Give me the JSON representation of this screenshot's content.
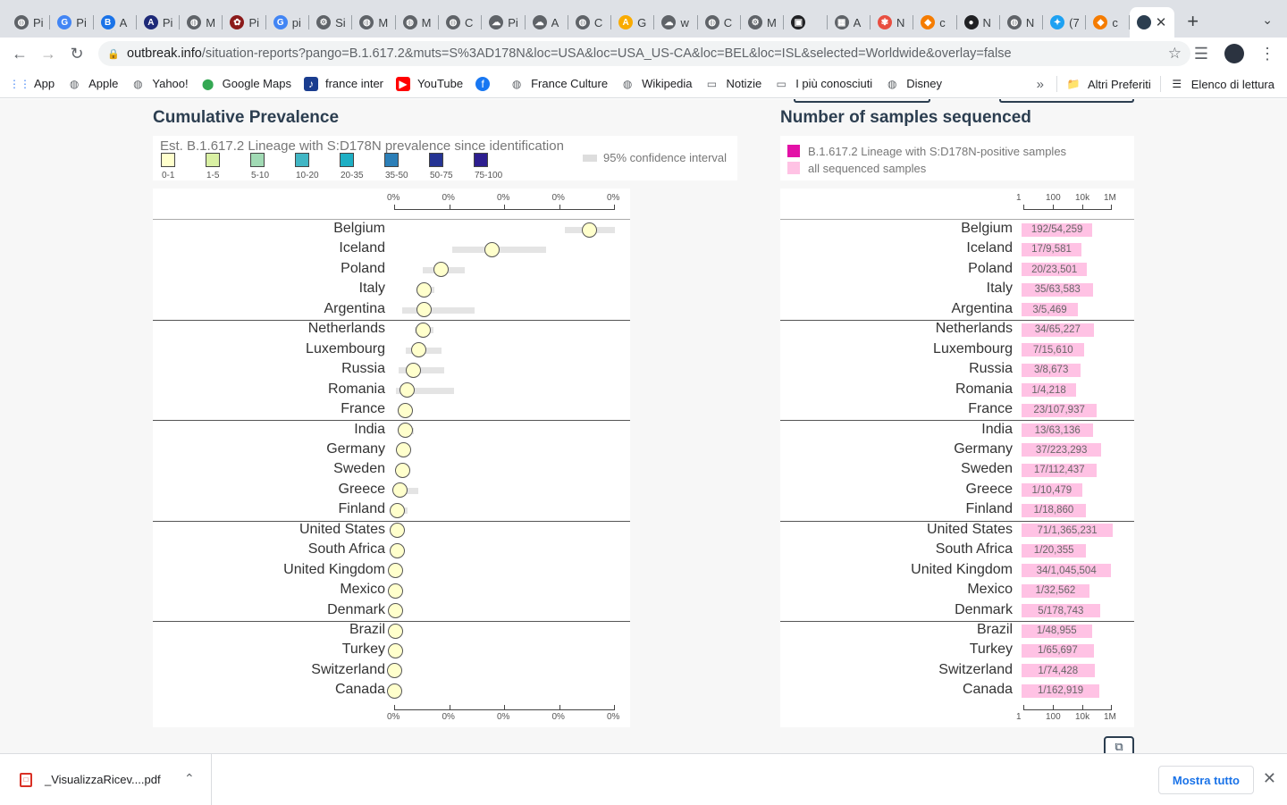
{
  "browser": {
    "tabs": [
      {
        "label": "Pi",
        "icon": "globe-icon"
      },
      {
        "label": "Pi",
        "icon": "google-icon"
      },
      {
        "label": "A",
        "icon": "b-icon"
      },
      {
        "label": "Pi",
        "icon": "a-icon"
      },
      {
        "label": "M",
        "icon": "globe-icon"
      },
      {
        "label": "Pi",
        "icon": "emblem-icon"
      },
      {
        "label": "pi",
        "icon": "google-icon"
      },
      {
        "label": "Si",
        "icon": "gear-icon"
      },
      {
        "label": "M",
        "icon": "globe-icon"
      },
      {
        "label": "M",
        "icon": "globe-icon"
      },
      {
        "label": "C",
        "icon": "globe-icon"
      },
      {
        "label": "Pi",
        "icon": "cloud-icon"
      },
      {
        "label": "A",
        "icon": "cloud-icon"
      },
      {
        "label": "C",
        "icon": "globe-icon"
      },
      {
        "label": "G",
        "icon": "a-yellow-icon"
      },
      {
        "label": "w",
        "icon": "cloud-icon"
      },
      {
        "label": "C",
        "icon": "globe-icon"
      },
      {
        "label": "M",
        "icon": "gear-icon"
      },
      {
        "label": "",
        "icon": "tv-icon"
      },
      {
        "label": "A",
        "icon": "map-icon"
      },
      {
        "label": "N",
        "icon": "flower-icon"
      },
      {
        "label": "c",
        "icon": "diamond-icon"
      },
      {
        "label": "N",
        "icon": "github-icon"
      },
      {
        "label": "N",
        "icon": "globe-icon"
      },
      {
        "label": "(7",
        "icon": "twitter-icon"
      },
      {
        "label": "c",
        "icon": "diamond-icon"
      }
    ],
    "active_tab": {
      "label": "",
      "icon": "outbreak-icon"
    },
    "url_host": "outbreak.info",
    "url_path": "/situation-reports?pango=B.1.617.2&muts=S%3AD178N&loc=USA&loc=USA_US-CA&loc=BEL&loc=ISL&selected=Worldwide&overlay=false",
    "bookmarks": [
      {
        "label": "App",
        "icon": "apps-grid-icon"
      },
      {
        "label": "Apple",
        "icon": "globe-icon"
      },
      {
        "label": "Yahoo!",
        "icon": "globe-icon"
      },
      {
        "label": "Google Maps",
        "icon": "map-pin-icon"
      },
      {
        "label": "france inter",
        "icon": "radio-icon"
      },
      {
        "label": "YouTube",
        "icon": "youtube-icon"
      },
      {
        "label": "",
        "icon": "facebook-icon"
      },
      {
        "label": "France Culture",
        "icon": "globe-icon"
      },
      {
        "label": "Wikipedia",
        "icon": "globe-icon"
      },
      {
        "label": "Notizie",
        "icon": "folder-icon"
      },
      {
        "label": "I più conosciuti",
        "icon": "folder-icon"
      },
      {
        "label": "Disney",
        "icon": "globe-icon"
      }
    ],
    "bookmarks_overflow": "»",
    "other_bookmarks": "Altri Preferiti",
    "reading_list": "Elenco di lettura"
  },
  "prevalence": {
    "title": "Cumulative Prevalence",
    "legend_title": "Est. B.1.617.2 Lineage with S:D178N prevalence since identification",
    "ci_label": "95% confidence interval",
    "swatches": [
      {
        "label": "0-1",
        "color": "#ffffcc"
      },
      {
        "label": "1-5",
        "color": "#d9f0a3"
      },
      {
        "label": "5-10",
        "color": "#a1dab4"
      },
      {
        "label": "10-20",
        "color": "#41b6c4"
      },
      {
        "label": "20-35",
        "color": "#1dafc4"
      },
      {
        "label": "35-50",
        "color": "#2c7fb8"
      },
      {
        "label": "50-75",
        "color": "#253494"
      },
      {
        "label": "75-100",
        "color": "#2d1e8f"
      }
    ],
    "axis_ticks": [
      "0%",
      "0%",
      "0%",
      "0%",
      "0%"
    ]
  },
  "samples": {
    "title": "Number of samples sequenced",
    "legend_positive": "B.1.617.2 Lineage with S:D178N-positive samples",
    "legend_all": "all sequenced samples",
    "positive_color": "#e311a7",
    "all_color": "#ffc2e4",
    "axis_ticks": [
      "1",
      "100",
      "10k",
      "1M"
    ]
  },
  "countries": [
    {
      "name": "Belgium",
      "est": 0.00354,
      "lo": 0.0031,
      "hi": 0.004,
      "samples": "192/54,259",
      "total": 54259
    },
    {
      "name": "Iceland",
      "est": 0.00178,
      "lo": 0.00105,
      "hi": 0.00275,
      "samples": "17/9,581",
      "total": 9581
    },
    {
      "name": "Poland",
      "est": 0.00085,
      "lo": 0.00052,
      "hi": 0.00128,
      "samples": "20/23,501",
      "total": 23501
    },
    {
      "name": "Italy",
      "est": 0.00055,
      "lo": 0.0004,
      "hi": 0.00073,
      "samples": "35/63,583",
      "total": 63583
    },
    {
      "name": "Argentina",
      "est": 0.00055,
      "lo": 0.00015,
      "hi": 0.00145,
      "samples": "3/5,469",
      "total": 5469
    },
    {
      "name": "Netherlands",
      "est": 0.00052,
      "lo": 0.00037,
      "hi": 0.00071,
      "samples": "34/65,227",
      "total": 65227
    },
    {
      "name": "Luxembourg",
      "est": 0.00045,
      "lo": 0.00021,
      "hi": 0.00086,
      "samples": "7/15,610",
      "total": 15610
    },
    {
      "name": "Russia",
      "est": 0.00035,
      "lo": 8e-05,
      "hi": 0.0009,
      "samples": "3/8,673",
      "total": 8673
    },
    {
      "name": "Romania",
      "est": 0.00024,
      "lo": 3e-05,
      "hi": 0.00109,
      "samples": "1/4,218",
      "total": 4218
    },
    {
      "name": "France",
      "est": 0.00021,
      "lo": 0.00014,
      "hi": 0.00032,
      "samples": "23/107,937",
      "total": 107937
    },
    {
      "name": "India",
      "est": 0.00021,
      "lo": 0.00011,
      "hi": 0.00035,
      "samples": "13/63,136",
      "total": 63136
    },
    {
      "name": "Germany",
      "est": 0.00017,
      "lo": 0.00012,
      "hi": 0.00023,
      "samples": "37/223,293",
      "total": 223293
    },
    {
      "name": "Sweden",
      "est": 0.00015,
      "lo": 9e-05,
      "hi": 0.00024,
      "samples": "17/112,437",
      "total": 112437
    },
    {
      "name": "Greece",
      "est": 0.0001,
      "lo": 1e-05,
      "hi": 0.00044,
      "samples": "1/10,479",
      "total": 10479
    },
    {
      "name": "Finland",
      "est": 5e-05,
      "lo": 5e-06,
      "hi": 0.00024,
      "samples": "1/18,860",
      "total": 18860
    },
    {
      "name": "United States",
      "est": 5e-05,
      "lo": 4e-05,
      "hi": 7e-05,
      "samples": "71/1,365,231",
      "total": 1365231
    },
    {
      "name": "South Africa",
      "est": 5e-05,
      "lo": 5e-06,
      "hi": 0.00017,
      "samples": "1/20,355",
      "total": 20355
    },
    {
      "name": "United Kingdom",
      "est": 3e-05,
      "lo": 2e-05,
      "hi": 5e-05,
      "samples": "34/1,045,504",
      "total": 1045504
    },
    {
      "name": "Mexico",
      "est": 3e-05,
      "lo": 5e-06,
      "hi": 0.00012,
      "samples": "1/32,562",
      "total": 32562
    },
    {
      "name": "Denmark",
      "est": 3e-05,
      "lo": 1e-05,
      "hi": 6e-05,
      "samples": "5/178,743",
      "total": 178743
    },
    {
      "name": "Brazil",
      "est": 2e-05,
      "lo": 5e-06,
      "hi": 9e-05,
      "samples": "1/48,955",
      "total": 48955
    },
    {
      "name": "Turkey",
      "est": 2e-05,
      "lo": 5e-06,
      "hi": 7e-05,
      "samples": "1/65,697",
      "total": 65697
    },
    {
      "name": "Switzerland",
      "est": 1e-05,
      "lo": 5e-06,
      "hi": 6e-05,
      "samples": "1/74,428",
      "total": 74428
    },
    {
      "name": "Canada",
      "est": 1e-05,
      "lo": 5e-06,
      "hi": 4e-05,
      "samples": "1/162,919",
      "total": 162919
    }
  ],
  "downloads": {
    "file_name": "_VisualizzaRicev....pdf",
    "show_all": "Mostra tutto"
  }
}
